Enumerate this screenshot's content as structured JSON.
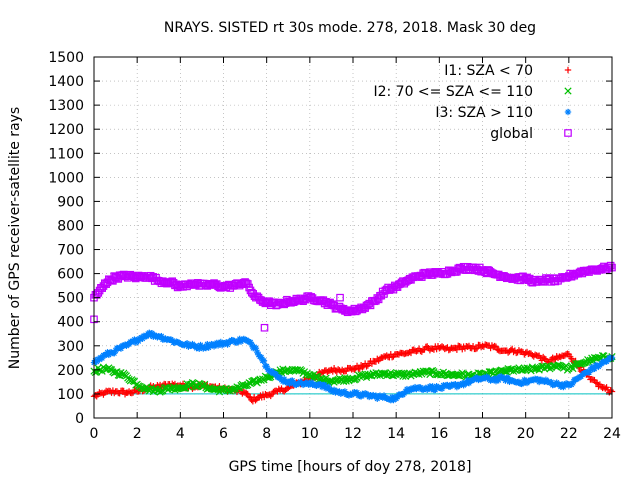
{
  "chart_data": {
    "type": "scatter",
    "title": "NRAYS. SISTED rt 30s mode. 278, 2018. Mask 30 deg",
    "xlabel": "GPS time [hours of doy 278, 2018]",
    "ylabel": "Number of GPS receiver-satellite rays",
    "xlim": [
      0,
      24
    ],
    "ylim": [
      0,
      1500
    ],
    "x_ticks": [
      "0",
      "2",
      "4",
      "6",
      "8",
      "10",
      "12",
      "14",
      "16",
      "18",
      "20",
      "22",
      "24"
    ],
    "y_ticks": [
      "0",
      "100",
      "200",
      "300",
      "400",
      "500",
      "600",
      "700",
      "800",
      "900",
      "1000",
      "1100",
      "1200",
      "1300",
      "1400",
      "1500"
    ],
    "grid": true,
    "legend_position": "top-right",
    "reference_line": {
      "y": 100,
      "color": "#00c0c0"
    },
    "series": [
      {
        "name": "I1: SZA < 70",
        "marker": "+",
        "color": "#ff0000",
        "x": [
          0,
          0.5,
          1,
          1.5,
          2,
          2.5,
          3,
          3.5,
          4,
          4.5,
          5,
          5.5,
          6,
          6.5,
          7,
          7.3,
          7.6,
          8,
          8.5,
          9,
          9.5,
          10,
          10.5,
          11,
          11.5,
          12,
          12.5,
          13,
          13.5,
          14,
          14.5,
          15,
          15.5,
          16,
          16.5,
          17,
          17.5,
          18,
          18.5,
          19,
          19.5,
          20,
          20.5,
          21,
          21.5,
          22,
          22.5,
          23,
          23.5,
          24
        ],
        "values": [
          90,
          105,
          110,
          105,
          110,
          125,
          130,
          140,
          135,
          130,
          135,
          130,
          120,
          115,
          105,
          75,
          85,
          95,
          110,
          125,
          145,
          165,
          185,
          200,
          200,
          205,
          215,
          235,
          255,
          265,
          270,
          280,
          290,
          290,
          285,
          295,
          290,
          300,
          295,
          280,
          280,
          270,
          260,
          235,
          250,
          265,
          210,
          160,
          130,
          110
        ]
      },
      {
        "name": "I2: 70 <= SZA <= 110",
        "marker": "x",
        "color": "#00c000",
        "x": [
          0,
          0.5,
          1,
          1.5,
          2,
          2.5,
          3,
          3.5,
          4,
          4.5,
          5,
          5.5,
          6,
          6.5,
          7,
          7.5,
          8,
          8.5,
          9,
          9.5,
          10,
          10.5,
          11,
          11.5,
          12,
          12.5,
          13,
          13.5,
          14,
          14.5,
          15,
          15.5,
          16,
          16.5,
          17,
          17.5,
          18,
          18.5,
          19,
          19.5,
          20,
          20.5,
          21,
          21.5,
          22,
          22.5,
          23,
          23.5,
          24
        ],
        "values": [
          195,
          205,
          190,
          175,
          140,
          120,
          115,
          125,
          125,
          140,
          135,
          120,
          115,
          120,
          135,
          150,
          170,
          190,
          200,
          195,
          180,
          160,
          155,
          160,
          165,
          175,
          180,
          185,
          180,
          180,
          185,
          190,
          185,
          180,
          180,
          175,
          180,
          185,
          195,
          200,
          200,
          205,
          210,
          220,
          205,
          225,
          240,
          250,
          255
        ]
      },
      {
        "name": "I3: SZA > 110",
        "marker": "*",
        "color": "#0080ff",
        "x": [
          0,
          0.5,
          1,
          1.5,
          2,
          2.5,
          3,
          3.5,
          4,
          4.5,
          5,
          5.5,
          6,
          6.5,
          7,
          7.5,
          8,
          8.5,
          9,
          9.5,
          10,
          10.5,
          11,
          11.5,
          12,
          12.5,
          13,
          13.5,
          14,
          14.5,
          15,
          15.5,
          16,
          16.5,
          17,
          17.5,
          18,
          18.5,
          19,
          19.5,
          20,
          20.5,
          21,
          21.5,
          22,
          22.5,
          23,
          23.5,
          24
        ],
        "values": [
          230,
          260,
          280,
          300,
          325,
          350,
          340,
          325,
          310,
          300,
          295,
          305,
          310,
          320,
          325,
          290,
          215,
          170,
          150,
          145,
          140,
          140,
          115,
          105,
          100,
          95,
          90,
          85,
          80,
          120,
          125,
          125,
          125,
          130,
          140,
          155,
          165,
          160,
          165,
          150,
          150,
          160,
          150,
          140,
          135,
          170,
          200,
          225,
          250
        ]
      },
      {
        "name": "global",
        "marker": "square",
        "color": "#c000ff",
        "x": [
          0,
          0.2,
          0.5,
          1,
          1.5,
          2,
          2.5,
          3,
          3.5,
          4,
          4.5,
          5,
          5.5,
          6,
          6.5,
          7,
          7.5,
          8,
          8.5,
          9,
          9.5,
          10,
          10.5,
          11,
          11.5,
          12,
          12.5,
          13,
          13.5,
          14,
          14.5,
          15,
          15.5,
          16,
          16.5,
          17,
          17.5,
          18,
          18.5,
          19,
          19.5,
          20,
          20.5,
          21,
          21.5,
          22,
          22.5,
          23,
          23.5,
          24
        ],
        "values": [
          500,
          520,
          560,
          585,
          590,
          585,
          590,
          570,
          565,
          545,
          560,
          550,
          555,
          545,
          550,
          565,
          500,
          480,
          470,
          485,
          490,
          500,
          490,
          470,
          450,
          445,
          460,
          485,
          530,
          545,
          570,
          590,
          600,
          600,
          610,
          620,
          625,
          615,
          600,
          590,
          580,
          580,
          565,
          575,
          570,
          590,
          605,
          615,
          620,
          625
        ]
      }
    ],
    "outliers": [
      {
        "series": "global",
        "x": 0,
        "y": 410
      },
      {
        "series": "global",
        "x": 7.9,
        "y": 375
      },
      {
        "series": "global",
        "x": 11.4,
        "y": 500
      }
    ]
  }
}
